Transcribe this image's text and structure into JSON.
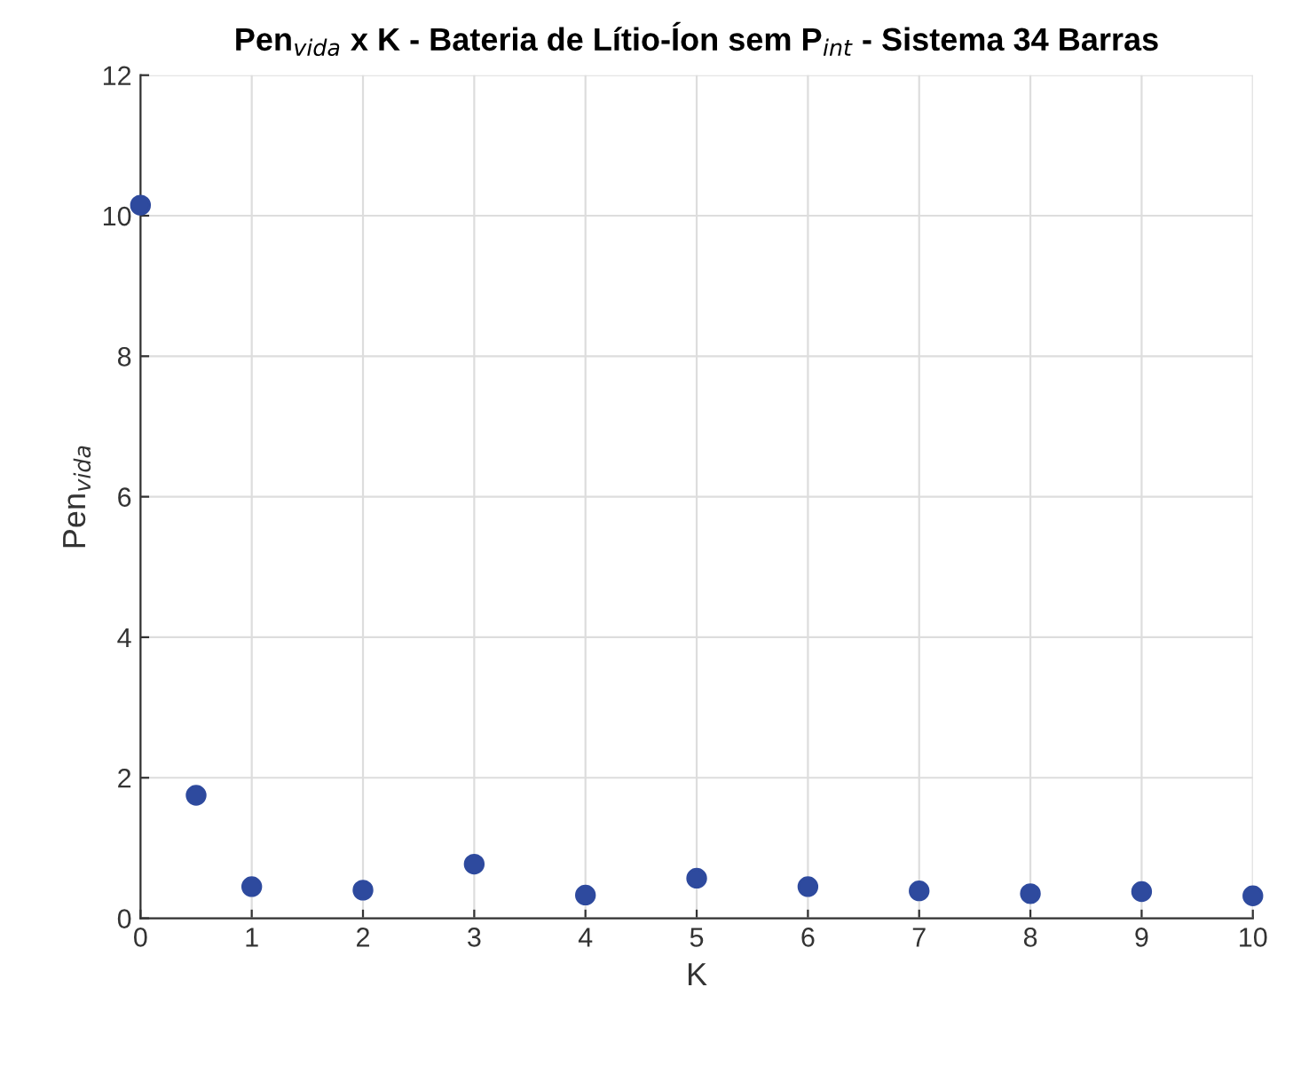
{
  "chart_data": {
    "type": "scatter",
    "title": "Pen$_{vida}$ x K - Bateria de Lítio-Íon sem P$_{int}$ - Sistema 34 Barras",
    "xlabel": "K",
    "ylabel": "Pen$_{vida}$",
    "x": [
      0,
      0.5,
      1,
      2,
      3,
      4,
      5,
      6,
      7,
      8,
      9,
      10
    ],
    "series": [
      {
        "color": "#2e4a9e",
        "values": [
          10.15,
          1.75,
          0.45,
          0.4,
          0.77,
          0.33,
          0.57,
          0.45,
          0.39,
          0.35,
          0.38,
          0.32
        ]
      }
    ],
    "xlim": [
      0,
      10
    ],
    "ylim": [
      0,
      12
    ],
    "xticks": [
      0,
      1,
      2,
      3,
      4,
      5,
      6,
      7,
      8,
      9,
      10
    ],
    "yticks": [
      0,
      2,
      4,
      6,
      8,
      10,
      12
    ],
    "grid": true,
    "marker": "circle"
  }
}
